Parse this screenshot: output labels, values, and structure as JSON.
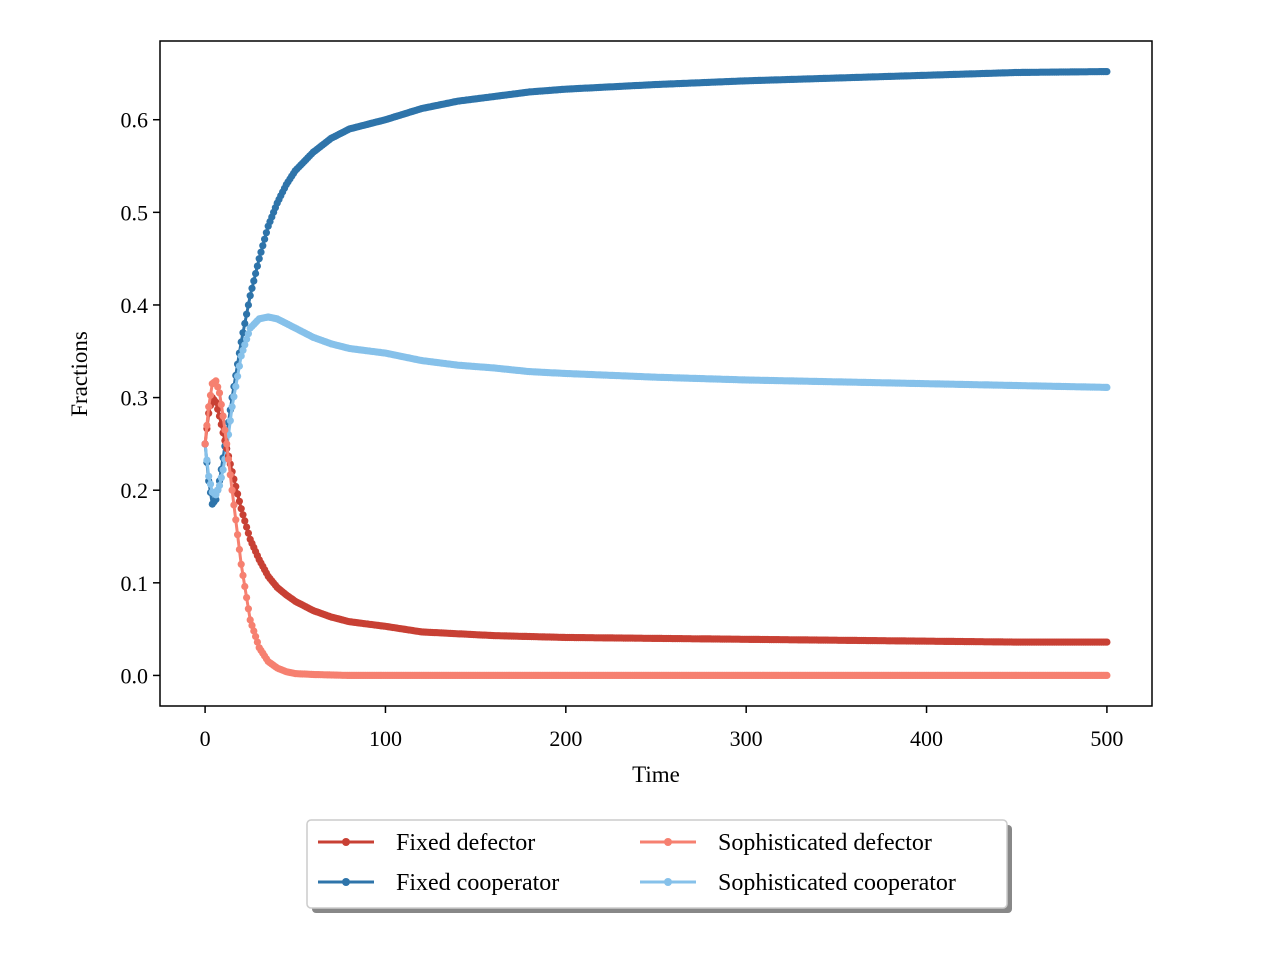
{
  "chart_data": {
    "type": "line",
    "xlabel": "Time",
    "ylabel": "Fractions",
    "xlim": [
      -25,
      525
    ],
    "ylim": [
      -0.033,
      0.685
    ],
    "xticks": [
      0,
      100,
      200,
      300,
      400,
      500
    ],
    "xtick_labels": [
      "0",
      "100",
      "200",
      "300",
      "400",
      "500"
    ],
    "yticks": [
      0.0,
      0.1,
      0.2,
      0.3,
      0.4,
      0.5,
      0.6
    ],
    "ytick_labels": [
      "0.0",
      "0.1",
      "0.2",
      "0.3",
      "0.4",
      "0.5",
      "0.6"
    ],
    "grid": false,
    "legend_placement": "below plot, center",
    "marker": "circle",
    "x": [
      0,
      2,
      4,
      6,
      8,
      10,
      12,
      15,
      20,
      25,
      30,
      35,
      40,
      45,
      50,
      60,
      70,
      80,
      100,
      120,
      140,
      160,
      180,
      200,
      250,
      300,
      350,
      400,
      450,
      500
    ],
    "series": [
      {
        "name": "Fixed defector",
        "color": "#c84034",
        "values": [
          0.25,
          0.283,
          0.3,
          0.295,
          0.28,
          0.262,
          0.245,
          0.22,
          0.18,
          0.147,
          0.125,
          0.107,
          0.095,
          0.087,
          0.08,
          0.07,
          0.063,
          0.058,
          0.053,
          0.047,
          0.045,
          0.043,
          0.042,
          0.041,
          0.04,
          0.039,
          0.038,
          0.037,
          0.036,
          0.036
        ]
      },
      {
        "name": "Fixed cooperator",
        "color": "#2e74aa",
        "values": [
          0.25,
          0.21,
          0.185,
          0.19,
          0.21,
          0.235,
          0.26,
          0.3,
          0.36,
          0.41,
          0.45,
          0.485,
          0.51,
          0.53,
          0.545,
          0.565,
          0.58,
          0.59,
          0.6,
          0.612,
          0.62,
          0.625,
          0.63,
          0.633,
          0.638,
          0.642,
          0.645,
          0.648,
          0.651,
          0.652
        ]
      },
      {
        "name": "Sophisticated defector",
        "color": "#f68070",
        "values": [
          0.25,
          0.29,
          0.315,
          0.318,
          0.305,
          0.28,
          0.25,
          0.2,
          0.12,
          0.06,
          0.03,
          0.015,
          0.008,
          0.004,
          0.002,
          0.001,
          0.0005,
          0.0,
          0.0,
          0.0,
          0.0,
          0.0,
          0.0,
          0.0,
          0.0,
          0.0,
          0.0,
          0.0,
          0.0,
          0.0
        ]
      },
      {
        "name": "Sophisticated cooperator",
        "color": "#86c1ea",
        "values": [
          0.25,
          0.215,
          0.198,
          0.195,
          0.205,
          0.222,
          0.245,
          0.29,
          0.345,
          0.375,
          0.385,
          0.387,
          0.385,
          0.38,
          0.375,
          0.365,
          0.358,
          0.353,
          0.348,
          0.34,
          0.335,
          0.332,
          0.328,
          0.326,
          0.322,
          0.319,
          0.317,
          0.315,
          0.313,
          0.311
        ]
      }
    ]
  }
}
